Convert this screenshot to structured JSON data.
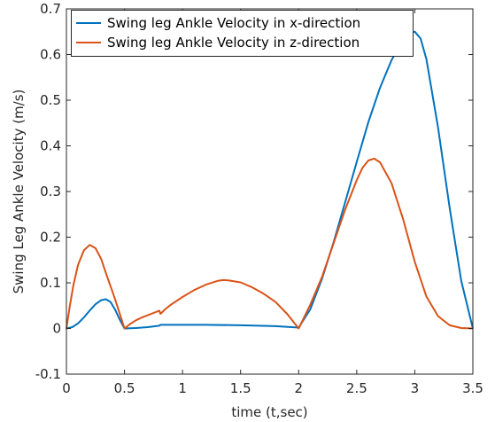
{
  "chart_data": {
    "type": "line",
    "xlabel": "time (t,sec)",
    "ylabel": "Swing Leg Ankle Velocity (m/s)",
    "xlim": [
      0,
      3.5
    ],
    "ylim": [
      -0.1,
      0.7
    ],
    "xticks": [
      0,
      0.5,
      1,
      1.5,
      2,
      2.5,
      3,
      3.5
    ],
    "xtick_labels": [
      "0",
      "0.5",
      "1",
      "1.5",
      "2",
      "2.5",
      "3",
      "3.5"
    ],
    "yticks": [
      -0.1,
      0,
      0.1,
      0.2,
      0.3,
      0.4,
      0.5,
      0.6,
      0.7
    ],
    "ytick_labels": [
      "-0.1",
      "0",
      "0.1",
      "0.2",
      "0.3",
      "0.4",
      "0.5",
      "0.6",
      "0.7"
    ],
    "grid": false,
    "legend_position": "top",
    "series": [
      {
        "name": "Swing leg Ankle Velocity in x-direction",
        "color": "#0072BD",
        "x": [
          0,
          0.05,
          0.1,
          0.15,
          0.2,
          0.25,
          0.3,
          0.34,
          0.38,
          0.42,
          0.46,
          0.5,
          0.6,
          0.7,
          0.8,
          0.81,
          1.0,
          1.2,
          1.5,
          1.8,
          2.0,
          2.1,
          2.2,
          2.3,
          2.4,
          2.5,
          2.6,
          2.7,
          2.8,
          2.9,
          2.95,
          3.0,
          3.05,
          3.1,
          3.2,
          3.3,
          3.4,
          3.5
        ],
        "y": [
          0,
          0.003,
          0.011,
          0.024,
          0.039,
          0.053,
          0.062,
          0.064,
          0.058,
          0.041,
          0.019,
          0,
          0.001,
          0.003,
          0.006,
          0.008,
          0.008,
          0.008,
          0.007,
          0.005,
          0.002,
          0.042,
          0.108,
          0.188,
          0.276,
          0.365,
          0.452,
          0.527,
          0.588,
          0.632,
          0.646,
          0.65,
          0.635,
          0.59,
          0.44,
          0.264,
          0.104,
          0
        ]
      },
      {
        "name": "Swing leg Ankle Velocity in z-direction",
        "color": "#D95319",
        "x": [
          0,
          0.03,
          0.06,
          0.1,
          0.15,
          0.2,
          0.25,
          0.3,
          0.35,
          0.4,
          0.45,
          0.5,
          0.55,
          0.6,
          0.65,
          0.7,
          0.75,
          0.8,
          0.81,
          0.85,
          0.9,
          1.0,
          1.1,
          1.2,
          1.3,
          1.35,
          1.4,
          1.5,
          1.6,
          1.7,
          1.8,
          1.9,
          2.0,
          2.1,
          2.2,
          2.3,
          2.4,
          2.5,
          2.55,
          2.6,
          2.65,
          2.7,
          2.8,
          2.9,
          3.0,
          3.1,
          3.2,
          3.3,
          3.4,
          3.5
        ],
        "y": [
          0,
          0.05,
          0.095,
          0.139,
          0.171,
          0.183,
          0.176,
          0.152,
          0.114,
          0.078,
          0.04,
          0,
          0.01,
          0.018,
          0.024,
          0.029,
          0.034,
          0.039,
          0.032,
          0.042,
          0.052,
          0.069,
          0.084,
          0.096,
          0.104,
          0.106,
          0.105,
          0.101,
          0.09,
          0.076,
          0.058,
          0.032,
          0,
          0.052,
          0.112,
          0.186,
          0.26,
          0.325,
          0.352,
          0.368,
          0.372,
          0.364,
          0.318,
          0.239,
          0.146,
          0.07,
          0.027,
          0.007,
          0.001,
          0
        ]
      }
    ]
  }
}
